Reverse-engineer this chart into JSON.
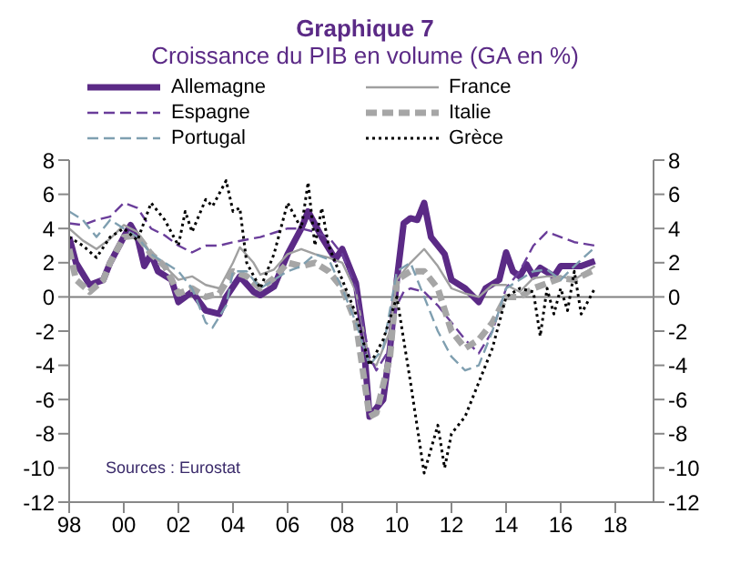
{
  "chart_data": {
    "type": "line",
    "title": "Graphique 7",
    "subtitle": "Croissance du PIB en volume (GA en %)",
    "annotations": [
      "Sources : Eurostat"
    ],
    "xlim": [
      1998,
      2019.4
    ],
    "xticks": [
      {
        "value": 1998,
        "label": "98"
      },
      {
        "value": 2000,
        "label": "00"
      },
      {
        "value": 2002,
        "label": "02"
      },
      {
        "value": 2004,
        "label": "04"
      },
      {
        "value": 2006,
        "label": "06"
      },
      {
        "value": 2008,
        "label": "08"
      },
      {
        "value": 2010,
        "label": "10"
      },
      {
        "value": 2012,
        "label": "12"
      },
      {
        "value": 2014,
        "label": "14"
      },
      {
        "value": 2016,
        "label": "16"
      },
      {
        "value": 2018,
        "label": "18"
      }
    ],
    "ylim": [
      -12,
      8
    ],
    "yticks": [
      -12,
      -10,
      -8,
      -6,
      -4,
      -2,
      0,
      2,
      4,
      6,
      8
    ],
    "y2lim": [
      -12,
      8
    ],
    "y2ticks": [
      -12,
      -10,
      -8,
      -6,
      -4,
      -2,
      0,
      2,
      4,
      6,
      8
    ],
    "ref_lines": [
      {
        "axis": "y",
        "value": 0,
        "color": "#808080"
      }
    ],
    "grid": false,
    "legend": "top",
    "marker": "none",
    "series": [
      {
        "name": "Allemagne",
        "color": "#5b2a86",
        "line_style": "solid",
        "x": [
          1998,
          1998.25,
          1998.75,
          1999.25,
          1999.5,
          2000,
          2000.25,
          2000.5,
          2000.75,
          2001,
          2001.25,
          2001.75,
          2002,
          2002.25,
          2002.5,
          2003,
          2003.5,
          2003.75,
          2004.25,
          2004.75,
          2005,
          2005.5,
          2006,
          2006.5,
          2006.75,
          2007.25,
          2007.75,
          2008,
          2008.5,
          2008.75,
          2009,
          2009.5,
          2009.75,
          2010,
          2010.25,
          2010.5,
          2010.75,
          2011,
          2011.25,
          2011.75,
          2012,
          2012.5,
          2013,
          2013.25,
          2013.75,
          2014,
          2014.25,
          2014.5,
          2014.75,
          2015,
          2015.25,
          2015.75,
          2016,
          2016.75,
          2017.25
        ],
        "values": [
          3.5,
          2,
          0.7,
          1,
          2,
          3.5,
          4.2,
          3.5,
          1.8,
          2.5,
          1.5,
          1.0,
          -0.3,
          0,
          0.3,
          -0.8,
          -1,
          0,
          1.2,
          0.3,
          0.1,
          0.6,
          2.5,
          4,
          5,
          3.5,
          2.2,
          2.8,
          0.8,
          -2,
          -7,
          -6,
          -3,
          1,
          4.3,
          4.6,
          4.5,
          5.5,
          3.5,
          2.5,
          1,
          0.5,
          -0.3,
          0.5,
          1,
          2.6,
          1.5,
          1.2,
          1.9,
          1.2,
          1.7,
          1.2,
          1.8,
          1.8,
          2.1
        ]
      },
      {
        "name": "France",
        "color": "#a0a0a0",
        "line_style": "solid",
        "x": [
          1998,
          1998.5,
          1999,
          1999.5,
          2000,
          2000.5,
          2001,
          2001.5,
          2002,
          2002.5,
          2003,
          2003.5,
          2004,
          2004.25,
          2004.75,
          2005,
          2005.5,
          2006,
          2006.5,
          2007,
          2007.5,
          2008,
          2008.5,
          2009,
          2009.25,
          2009.75,
          2010,
          2010.5,
          2011,
          2011.5,
          2012,
          2012.5,
          2013,
          2013.5,
          2014,
          2014.5,
          2015,
          2015.5,
          2016,
          2016.5,
          2017.25
        ],
        "values": [
          4,
          3.3,
          2.8,
          3.4,
          4.2,
          3.8,
          2.5,
          1.8,
          1.0,
          1.2,
          0.7,
          0.5,
          2.0,
          2.9,
          2.0,
          1.3,
          1.6,
          2.5,
          2.8,
          2.5,
          2.3,
          2,
          0.3,
          -3.8,
          -4,
          -2,
          1.0,
          2,
          2.8,
          1.8,
          0.5,
          0.2,
          0,
          0.7,
          0.7,
          0.3,
          1.1,
          1.2,
          1.2,
          1.0,
          1.8
        ]
      },
      {
        "name": "Espagne",
        "color": "#6a3d9a",
        "line_style": "dashed",
        "x": [
          1998,
          1998.5,
          1999,
          1999.5,
          2000,
          2000.5,
          2001,
          2001.5,
          2002,
          2002.5,
          2003,
          2003.5,
          2004,
          2005,
          2006,
          2006.5,
          2007,
          2007.5,
          2008,
          2008.5,
          2009,
          2009.25,
          2009.75,
          2010,
          2010.25,
          2010.5,
          2011,
          2011.5,
          2012,
          2012.5,
          2013,
          2013.5,
          2014,
          2014.5,
          2015,
          2015.5,
          2016,
          2016.5,
          2017.25
        ],
        "values": [
          4.3,
          4.2,
          4.5,
          4.7,
          5.5,
          5.2,
          4.0,
          3.6,
          3.0,
          2.6,
          3.0,
          3.0,
          3.2,
          3.5,
          4.0,
          4.0,
          3.8,
          3.5,
          2.5,
          0.5,
          -3.5,
          -4.3,
          -3,
          -0.5,
          0.3,
          0.5,
          0.3,
          -0.5,
          -1.5,
          -2.5,
          -3.3,
          -2,
          0.5,
          1.5,
          3,
          3.8,
          3.5,
          3.2,
          3.0
        ]
      },
      {
        "name": "Italie",
        "color": "#a6a6a6",
        "line_style": "dashed",
        "x": [
          1998,
          1998.25,
          1998.75,
          1999.25,
          1999.5,
          2000,
          2000.5,
          2001,
          2001.5,
          2002,
          2002.5,
          2003,
          2003.5,
          2004,
          2004.5,
          2005,
          2005.5,
          2006,
          2006.5,
          2007,
          2007.5,
          2008,
          2008.5,
          2009,
          2009.25,
          2009.75,
          2010,
          2010.5,
          2011,
          2011.5,
          2012,
          2012.5,
          2013,
          2013.5,
          2014,
          2014.5,
          2015,
          2015.5,
          2016,
          2016.5,
          2017.25
        ],
        "values": [
          2.8,
          1,
          0.3,
          1,
          2,
          3.5,
          3.6,
          2.5,
          1.8,
          0.2,
          0.5,
          0,
          0.2,
          1.5,
          1.2,
          0.5,
          1.1,
          2.0,
          1.8,
          2.0,
          1.5,
          0.5,
          -1.5,
          -7,
          -6.8,
          -3.5,
          1.0,
          1.5,
          1.5,
          0.5,
          -2,
          -3,
          -2.5,
          -1.5,
          0,
          0,
          0.5,
          0.8,
          1.1,
          1.0,
          1.6
        ]
      },
      {
        "name": "Portugal",
        "color": "#7f9fb0",
        "line_style": "dashed",
        "x": [
          1998,
          1998.5,
          1999,
          1999.5,
          2000,
          2000.5,
          2001,
          2001.5,
          2002,
          2002.5,
          2003,
          2003.25,
          2003.75,
          2004,
          2004.5,
          2005,
          2005.5,
          2006,
          2006.5,
          2007,
          2007.5,
          2008,
          2008.5,
          2009,
          2009.5,
          2010,
          2010.5,
          2011,
          2011.5,
          2012,
          2012.5,
          2013,
          2013.5,
          2014,
          2014.5,
          2015,
          2015.5,
          2016,
          2016.5,
          2017.25
        ],
        "values": [
          5,
          4.5,
          3.5,
          4.5,
          4.0,
          3.5,
          2.5,
          2.0,
          1.5,
          0.5,
          -1.5,
          -1.8,
          -0.5,
          1.5,
          1.5,
          0.5,
          1.0,
          1.5,
          1.8,
          2.5,
          2.2,
          0.5,
          -1.5,
          -4,
          -3,
          1.5,
          2,
          0,
          -2,
          -3.5,
          -4.3,
          -4.0,
          -2,
          0.5,
          1.0,
          1.5,
          1.6,
          1.0,
          1.8,
          2.9
        ]
      },
      {
        "name": "Grèce",
        "color": "#000000",
        "line_style": "dotted",
        "x": [
          1998,
          1998.5,
          1999,
          1999.5,
          2000,
          2000.5,
          2001,
          2001.5,
          2002,
          2002.25,
          2002.5,
          2003,
          2003.25,
          2003.75,
          2004,
          2004.25,
          2004.5,
          2005,
          2005.5,
          2006,
          2006.5,
          2006.75,
          2007,
          2007.25,
          2007.5,
          2008,
          2008.5,
          2009,
          2009.5,
          2010,
          2010.5,
          2011,
          2011.5,
          2011.75,
          2012,
          2012.5,
          2013,
          2013.5,
          2014,
          2014.5,
          2015,
          2015.25,
          2015.5,
          2015.75,
          2016,
          2016.25,
          2016.5,
          2016.75,
          2017.25
        ],
        "values": [
          3.5,
          3,
          2.3,
          3.5,
          4.0,
          3.3,
          5.5,
          4.5,
          3.0,
          5,
          3.8,
          5.7,
          5.3,
          6.8,
          5,
          5.2,
          2,
          0.5,
          2.5,
          5.5,
          4,
          6.7,
          3,
          5.2,
          3,
          1,
          -1,
          -4,
          -2.5,
          0,
          -5,
          -10.3,
          -7.5,
          -10,
          -8,
          -7,
          -5,
          -3,
          0,
          0.5,
          0.3,
          -2.3,
          0.5,
          -1,
          0.5,
          -0.8,
          1.5,
          -1,
          0.5
        ]
      }
    ]
  }
}
